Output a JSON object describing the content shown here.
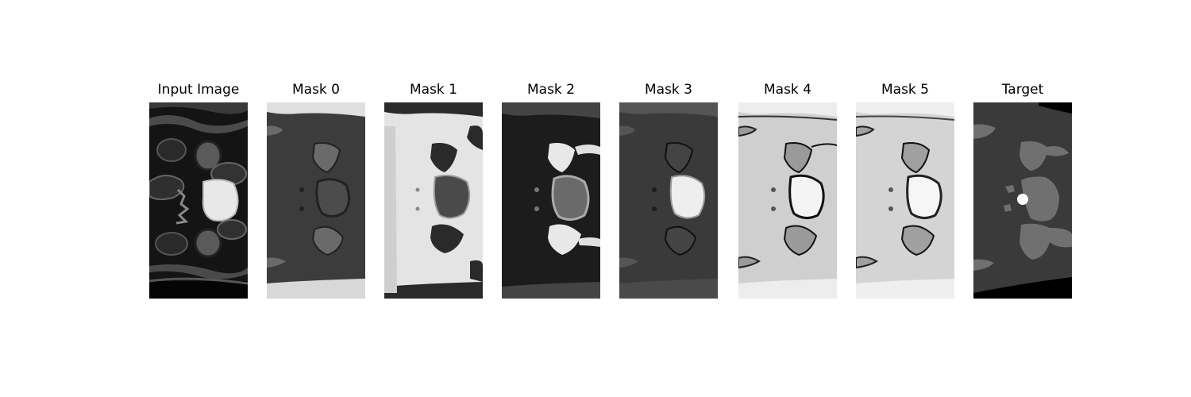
{
  "figure": {
    "panels": [
      {
        "title": "Input Image"
      },
      {
        "title": "Mask 0"
      },
      {
        "title": "Mask 1"
      },
      {
        "title": "Mask 2"
      },
      {
        "title": "Mask 3"
      },
      {
        "title": "Mask 4"
      },
      {
        "title": "Mask 5"
      },
      {
        "title": "Target"
      }
    ]
  }
}
